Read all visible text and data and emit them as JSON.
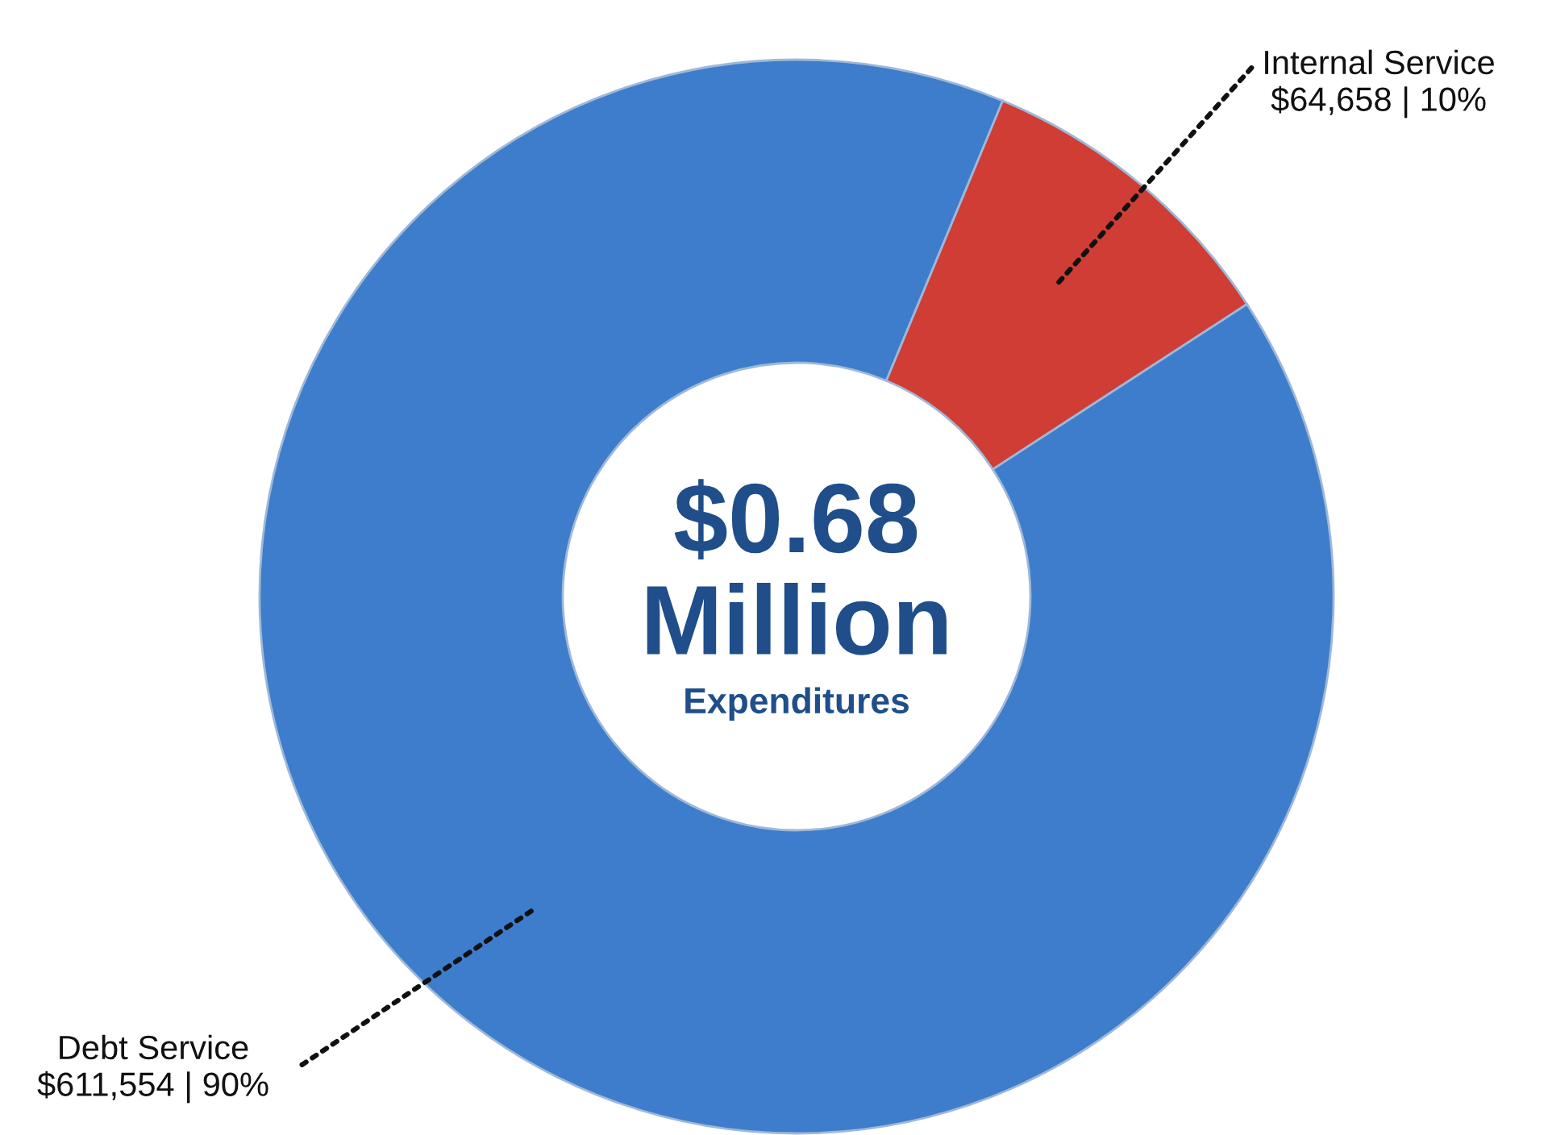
{
  "chart_data": {
    "type": "donut",
    "categories": [
      "Debt Service",
      "Internal Service"
    ],
    "values": [
      611554,
      64658
    ],
    "colors": [
      "#3d7dcc",
      "#cf3d35"
    ],
    "value_labels": [
      "$611,554 | 90%",
      "$64,658 | 10%"
    ],
    "annotations": [
      "$0.68",
      "Million",
      "Expenditures"
    ],
    "legend": false
  }
}
